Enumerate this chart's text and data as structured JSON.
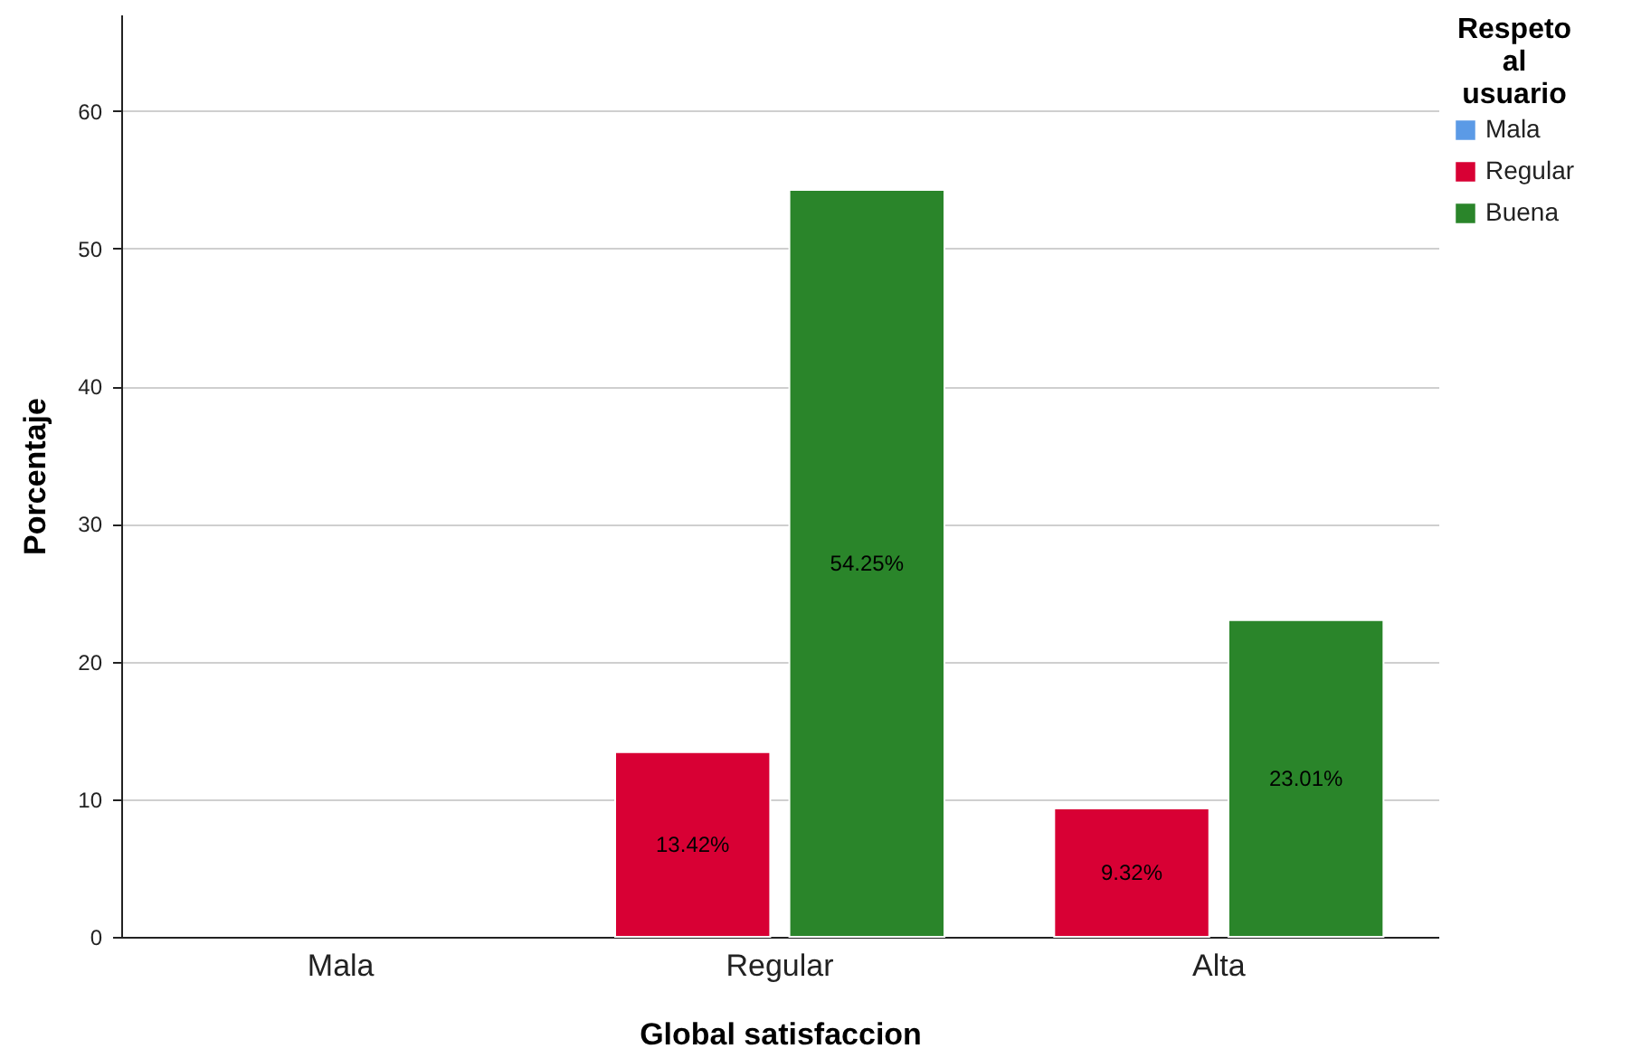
{
  "chart_data": {
    "type": "bar",
    "xlabel": "Global satisfaccion",
    "ylabel": "Porcentaje",
    "legend_title": "Respeto al usuario",
    "legend": "top right",
    "grid": "y",
    "categories": [
      "Mala",
      "Regular",
      "Alta"
    ],
    "ylim": [
      0,
      67
    ],
    "yticks": [
      0,
      10,
      20,
      30,
      40,
      50,
      60
    ],
    "series": [
      {
        "name": "Mala",
        "color": "#5b9ae6",
        "values": [
          null,
          null,
          null
        ]
      },
      {
        "name": "Regular",
        "color": "#d80034",
        "values": [
          null,
          13.42,
          9.32
        ],
        "value_labels": [
          null,
          "13.42%",
          "9.32%"
        ]
      },
      {
        "name": "Buena",
        "color": "#2a852a",
        "values": [
          null,
          54.25,
          23.01
        ],
        "value_labels": [
          null,
          "54.25%",
          "23.01%"
        ]
      }
    ]
  }
}
